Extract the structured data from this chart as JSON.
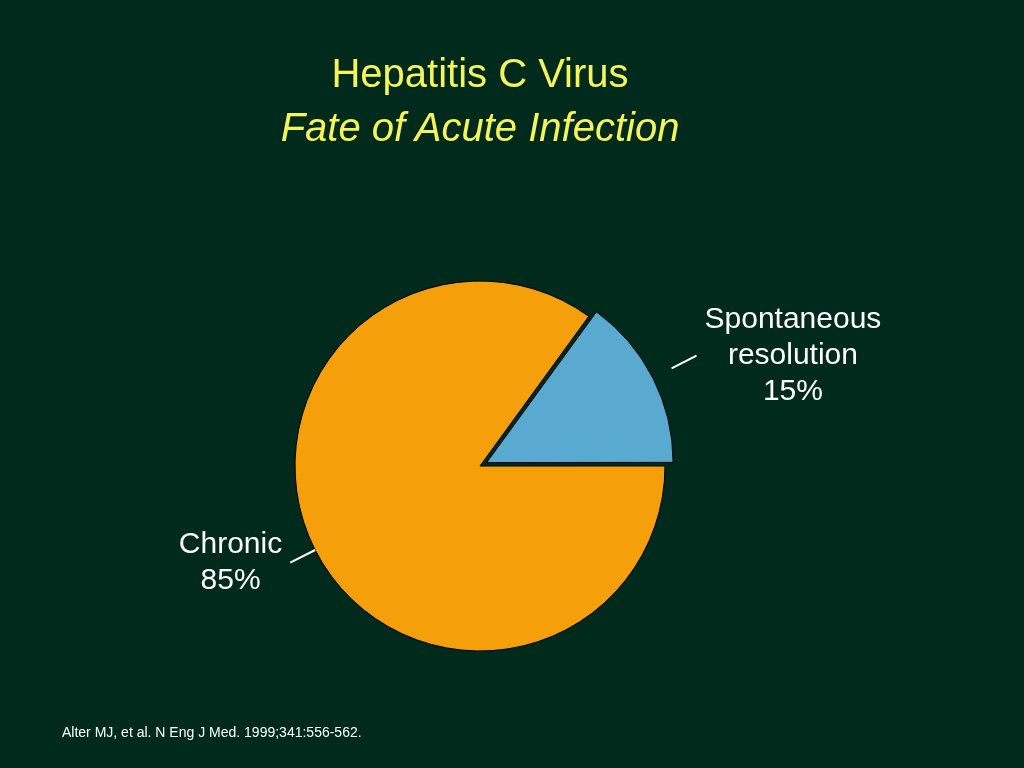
{
  "chart_data": {
    "type": "pie",
    "title": "Hepatitis C Virus",
    "subtitle": "Fate of Acute Infection",
    "categories": [
      "Spontaneous resolution",
      "Chronic"
    ],
    "values": [
      15,
      85
    ],
    "colors": [
      "#5aa9d0",
      "#f5a00a"
    ],
    "value_labels": [
      "15%",
      "85%"
    ],
    "annotations": [
      "Alter MJ, et al. N Eng J Med. 1999;341:556-562."
    ]
  }
}
